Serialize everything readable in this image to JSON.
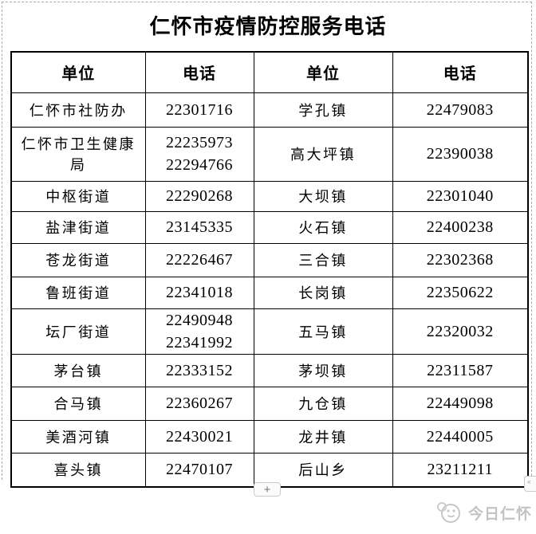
{
  "title": "仁怀市疫情防控服务电话",
  "table": {
    "headers": [
      "单位",
      "电话",
      "单位",
      "电话"
    ],
    "rows": [
      {
        "left_unit": "仁怀市社防办",
        "left_phone": "22301716",
        "right_unit": "学孔镇",
        "right_phone": "22479083"
      },
      {
        "left_unit": "仁怀市卫生健康局",
        "left_phone": "22235973\n22294766",
        "right_unit": "高大坪镇",
        "right_phone": "22390038"
      },
      {
        "left_unit": "中枢街道",
        "left_phone": "22290268",
        "right_unit": "大坝镇",
        "right_phone": "22301040"
      },
      {
        "left_unit": "盐津街道",
        "left_phone": "23145335",
        "right_unit": "火石镇",
        "right_phone": "22400238"
      },
      {
        "left_unit": "苍龙街道",
        "left_phone": "22226467",
        "right_unit": "三合镇",
        "right_phone": "22302368"
      },
      {
        "left_unit": "鲁班街道",
        "left_phone": "22341018",
        "right_unit": "长岗镇",
        "right_phone": "22350622"
      },
      {
        "left_unit": "坛厂街道",
        "left_phone": "22490948\n22341992",
        "right_unit": "五马镇",
        "right_phone": "22320032"
      },
      {
        "left_unit": "茅台镇",
        "left_phone": "22333152",
        "right_unit": "茅坝镇",
        "right_phone": "22311587"
      },
      {
        "left_unit": "合马镇",
        "left_phone": "22360267",
        "right_unit": "九仓镇",
        "right_phone": "22449098"
      },
      {
        "left_unit": "美酒河镇",
        "left_phone": "22430021",
        "right_unit": "龙井镇",
        "right_phone": "22440005"
      },
      {
        "left_unit": "喜头镇",
        "left_phone": "22470107",
        "right_unit": "后山乡",
        "right_phone": "23211211"
      }
    ]
  },
  "controls": {
    "add_button_label": "+",
    "side_handle_label": "«"
  },
  "watermark": {
    "label": "今日仁怀"
  },
  "colors": {
    "table_border": "#000000",
    "page_dash": "#ababab",
    "watermark_gray": "#c3c3c3"
  }
}
